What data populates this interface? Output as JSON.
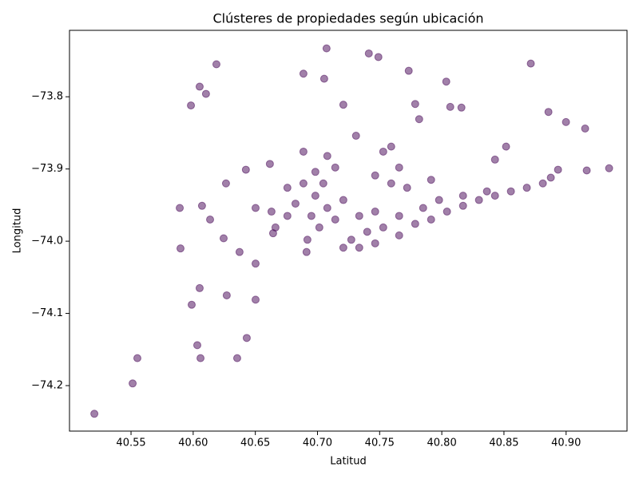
{
  "chart_data": {
    "type": "scatter",
    "title": "Clústeres de propiedades según ubicación",
    "xlabel": "Latitud",
    "ylabel": "Longitud",
    "color": "#440154",
    "alpha": 0.5,
    "xlim": [
      40.5005,
      40.949
    ],
    "ylim": [
      -74.263,
      -73.708
    ],
    "xticks": [
      40.55,
      {
        "value": 40.6,
        "label": "40.60"
      },
      40.65,
      {
        "value": 40.7,
        "label": "40.70"
      },
      40.75,
      {
        "value": 40.8,
        "label": "40.80"
      },
      40.85,
      {
        "value": 40.9,
        "label": "40.90"
      }
    ],
    "yticks": [
      {
        "value": -73.8,
        "label": "−73.8"
      },
      {
        "value": -73.9,
        "label": "−73.9"
      },
      {
        "value": -74.0,
        "label": "−74.0"
      },
      {
        "value": -74.1,
        "label": "−74.1"
      },
      {
        "value": -74.2,
        "label": "−74.2"
      }
    ],
    "x": [
      40.5205,
      40.5513,
      40.5551,
      40.6059,
      40.6033,
      40.6354,
      40.6431,
      40.6052,
      40.5988,
      40.627,
      40.6502,
      40.5898,
      40.6052,
      40.6103,
      40.6187,
      40.5982,
      40.7073,
      40.7413,
      40.749,
      40.7734,
      40.8036,
      40.8068,
      40.7818,
      40.7786,
      40.8158,
      40.8716,
      40.8858,
      40.8999,
      40.9153,
      40.9166,
      40.9346,
      40.8935,
      40.8517,
      40.8428,
      40.7054,
      40.6887,
      40.7208,
      40.731,
      40.7593,
      40.6617,
      40.6424,
      40.6264,
      40.6071,
      40.5892,
      40.6136,
      40.6245,
      40.6373,
      40.6502,
      40.6912,
      40.6643,
      40.6887,
      40.6983,
      40.7079,
      40.6951,
      40.7015,
      40.6919,
      40.7143,
      40.6823,
      40.7047,
      40.6983,
      40.7208,
      40.6758,
      40.663,
      40.6502,
      40.6662,
      40.7272,
      40.74,
      40.7529,
      40.7657,
      40.7464,
      40.7336,
      40.7208,
      40.7786,
      40.7914,
      40.8042,
      40.8171,
      40.8299,
      40.8428,
      40.8556,
      40.8684,
      40.8813,
      40.8877,
      40.785,
      40.7978,
      40.8171,
      40.8363,
      40.7593,
      40.7721,
      40.7914,
      40.7464,
      40.7657,
      40.7529,
      40.7336,
      40.7464,
      40.7657,
      40.7143,
      40.7079,
      40.6758,
      40.6887
    ],
    "y": [
      -74.239,
      -74.197,
      -74.162,
      -74.162,
      -74.144,
      -74.162,
      -74.134,
      -74.065,
      -74.088,
      -74.075,
      -74.081,
      -74.01,
      -73.786,
      -73.796,
      -73.755,
      -73.812,
      -73.733,
      -73.74,
      -73.745,
      -73.764,
      -73.779,
      -73.814,
      -73.831,
      -73.81,
      -73.815,
      -73.754,
      -73.821,
      -73.835,
      -73.844,
      -73.902,
      -73.899,
      -73.901,
      -73.869,
      -73.887,
      -73.775,
      -73.768,
      -73.811,
      -73.854,
      -73.869,
      -73.893,
      -73.901,
      -73.92,
      -73.951,
      -73.954,
      -73.97,
      -73.996,
      -74.015,
      -74.031,
      -74.015,
      -73.989,
      -73.92,
      -73.937,
      -73.954,
      -73.965,
      -73.981,
      -73.998,
      -73.97,
      -73.948,
      -73.92,
      -73.904,
      -73.943,
      -73.965,
      -73.959,
      -73.954,
      -73.981,
      -73.998,
      -73.987,
      -73.981,
      -73.992,
      -74.003,
      -74.009,
      -74.009,
      -73.976,
      -73.97,
      -73.959,
      -73.951,
      -73.943,
      -73.937,
      -73.931,
      -73.926,
      -73.92,
      -73.912,
      -73.954,
      -73.943,
      -73.937,
      -73.931,
      -73.92,
      -73.926,
      -73.915,
      -73.909,
      -73.898,
      -73.876,
      -73.965,
      -73.959,
      -73.965,
      -73.898,
      -73.882,
      -73.926,
      -73.876
    ]
  }
}
